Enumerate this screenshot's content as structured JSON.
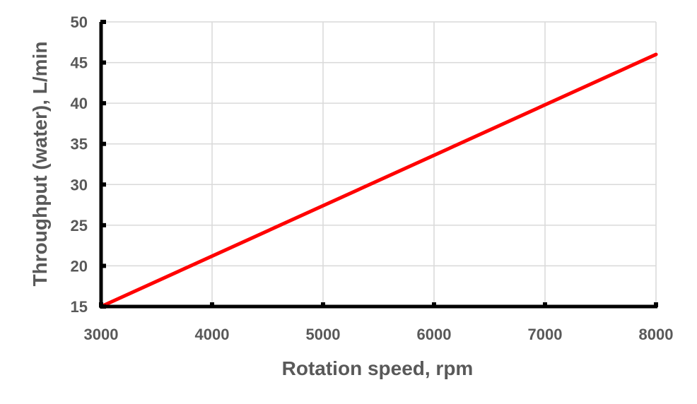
{
  "chart_data": {
    "type": "line",
    "xlabel": "Rotation speed, rpm",
    "ylabel": "Throughput (water), L/min",
    "xlim": [
      3000,
      8000
    ],
    "ylim": [
      15,
      50
    ],
    "x_ticks": [
      "3000",
      "4000",
      "5000",
      "6000",
      "7000",
      "8000"
    ],
    "y_ticks": [
      "15",
      "20",
      "25",
      "30",
      "35",
      "40",
      "45",
      "50"
    ],
    "grid": true,
    "legend": "none",
    "series": [
      {
        "color": "#ff0000",
        "x": [
          3000,
          8000
        ],
        "y": [
          15,
          46
        ]
      }
    ]
  }
}
